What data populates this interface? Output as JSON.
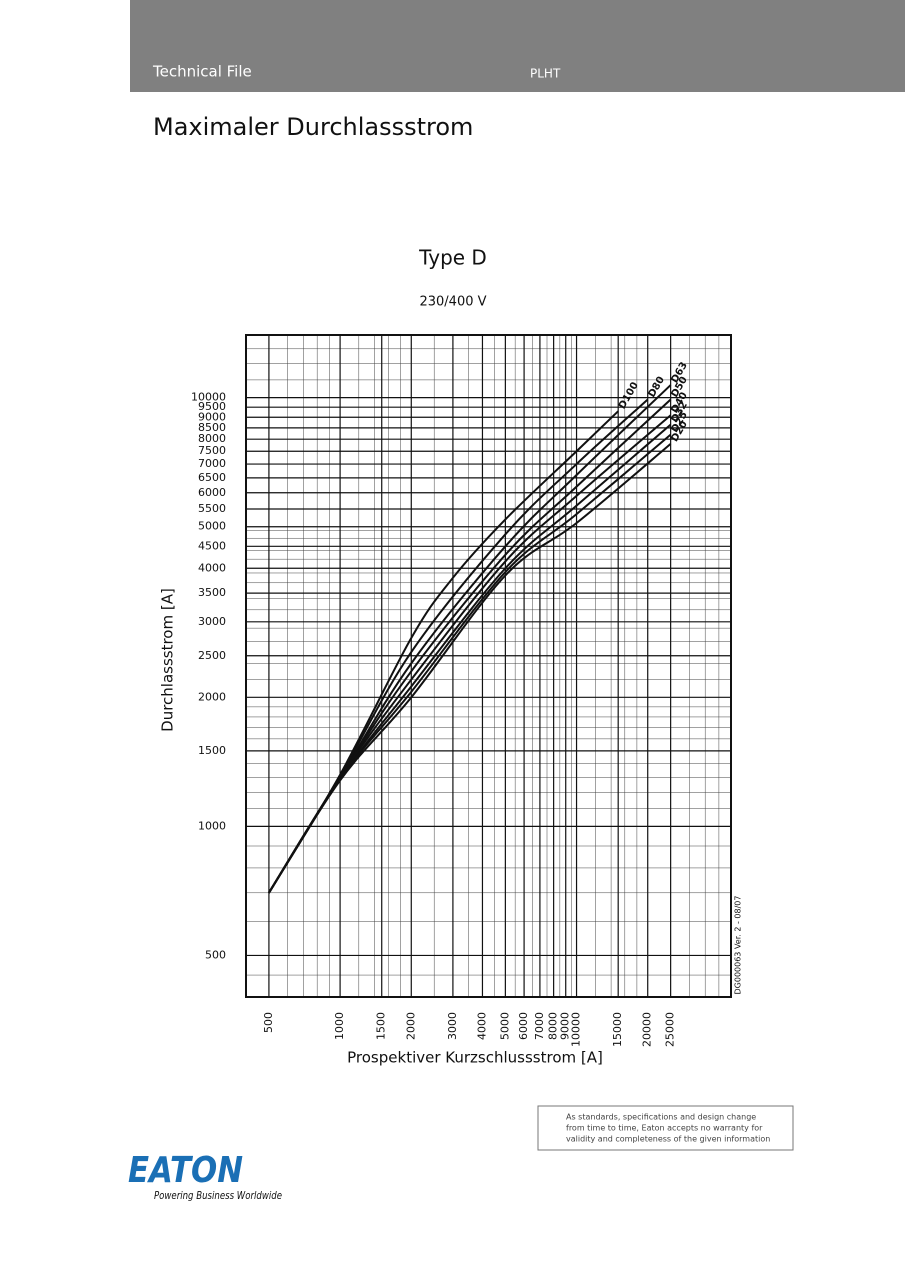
{
  "header": {
    "left": "Technical File",
    "center": "PLHT"
  },
  "title": "Maximaler Durchlassstrom",
  "chart_data": {
    "type": "line",
    "title": "Type D",
    "subtitle": "230/400 V",
    "x_label": "Prospektiver Kurzschlussstrom [A]",
    "y_label": "Durchlassstrom  [A]",
    "annotation": "DG000063  Ver. 2 - 08/07",
    "log_x": true,
    "log_y": true,
    "grid": true,
    "xlim": [
      400,
      45000
    ],
    "ylim": [
      400,
      14000
    ],
    "xticks": [
      500,
      1000,
      1500,
      2000,
      3000,
      4000,
      5000,
      6000,
      7000,
      8000,
      9000,
      10000,
      15000,
      20000,
      25000
    ],
    "yticks": [
      500,
      1000,
      1500,
      2000,
      2500,
      3000,
      3500,
      4000,
      4500,
      5000,
      5500,
      6000,
      6500,
      7000,
      7500,
      8000,
      8500,
      9000,
      9500,
      10000
    ],
    "minor_xticks": [
      600,
      700,
      800,
      900,
      1200,
      1400,
      1600,
      1800,
      2500,
      3500,
      4500,
      5500,
      6500,
      7500,
      8500,
      9500,
      12000,
      14000,
      16000,
      18000,
      30000,
      35000,
      40000
    ],
    "minor_yticks": [
      450,
      600,
      700,
      800,
      900,
      1100,
      1200,
      1300,
      1400,
      1600,
      1700,
      1800,
      1900,
      2200,
      2400,
      2700,
      2900,
      3200,
      3400,
      3700,
      3900,
      4200,
      4400,
      4700,
      4900,
      11000,
      12000,
      13000
    ],
    "series": [
      {
        "name": "D100",
        "color": "#111111",
        "x": [
          500,
          1000,
          2000,
          3000,
          5000,
          10000,
          15000
        ],
        "values": [
          700,
          1320,
          2750,
          3800,
          5200,
          7500,
          9300
        ]
      },
      {
        "name": "D80",
        "color": "#111111",
        "x": [
          500,
          1000,
          2000,
          5000,
          10000,
          20000
        ],
        "values": [
          700,
          1310,
          2550,
          4800,
          7000,
          9900
        ]
      },
      {
        "name": "D63",
        "color": "#111111",
        "x": [
          500,
          1000,
          2000,
          5000,
          10000,
          25000
        ],
        "values": [
          700,
          1300,
          2400,
          4500,
          6600,
          10700
        ]
      },
      {
        "name": "D50",
        "color": "#111111",
        "x": [
          500,
          1000,
          2000,
          5000,
          10000,
          25000
        ],
        "values": [
          700,
          1300,
          2300,
          4300,
          6200,
          9900
        ]
      },
      {
        "name": "D40",
        "color": "#111111",
        "x": [
          500,
          1000,
          2000,
          5000,
          10000,
          25000
        ],
        "values": [
          700,
          1300,
          2200,
          4150,
          5900,
          9100
        ]
      },
      {
        "name": "D32",
        "color": "#111111",
        "x": [
          500,
          1000,
          2000,
          5000,
          10000,
          25000
        ],
        "values": [
          700,
          1290,
          2120,
          4000,
          5600,
          8650
        ]
      },
      {
        "name": "D25",
        "color": "#111111",
        "x": [
          500,
          1000,
          2000,
          5000,
          10000,
          25000
        ],
        "values": [
          700,
          1290,
          2060,
          3920,
          5350,
          8200
        ]
      },
      {
        "name": "D20",
        "color": "#111111",
        "x": [
          500,
          1000,
          2000,
          5000,
          10000,
          25000
        ],
        "values": [
          700,
          1280,
          2000,
          3850,
          5100,
          7800
        ]
      }
    ]
  },
  "disclaimer": [
    "As standards, specifications and design change",
    "from time to time, Eaton accepts no warranty for",
    "validity and completeness of the given information"
  ],
  "logo": {
    "name": "EATON",
    "tagline": "Powering Business Worldwide"
  }
}
